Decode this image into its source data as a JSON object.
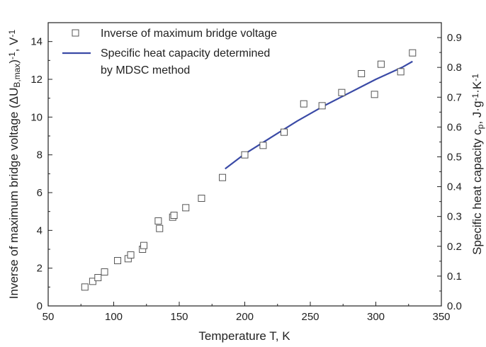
{
  "chart_data": {
    "type": "scatter",
    "x_axis": {
      "label": "Temperature T, K",
      "range": [
        50,
        350
      ],
      "ticks": [
        50,
        100,
        150,
        200,
        250,
        300,
        350
      ]
    },
    "y_axis_left": {
      "label_parts": [
        "Inverse of maximum bridge voltage (ΔU",
        "B,max",
        ")",
        "-1",
        ", V",
        "-1"
      ],
      "range": [
        0,
        15
      ],
      "ticks": [
        0,
        2,
        4,
        6,
        8,
        10,
        12,
        14
      ]
    },
    "y_axis_right": {
      "label_parts": [
        "Specific heat capacity c",
        "p",
        ", J·g",
        "-1",
        "·K",
        "-1"
      ],
      "range": [
        0,
        0.95
      ],
      "ticks": [
        "0.0",
        "0.1",
        "0.2",
        "0.3",
        "0.4",
        "0.5",
        "0.6",
        "0.7",
        "0.8",
        "0.9"
      ]
    },
    "grid": false,
    "legend_position": "top-left",
    "colors": {
      "line": "#3a4aa6",
      "markers": "#555555",
      "axes": "#222222"
    },
    "series": [
      {
        "name": "Inverse of maximum bridge voltage",
        "type": "scatter",
        "axis": "left",
        "marker": "open-square",
        "x": [
          78,
          84,
          88,
          93,
          103,
          111,
          113,
          122,
          123,
          134,
          135,
          145,
          146,
          155,
          167,
          183,
          200,
          214,
          230,
          245,
          259,
          274,
          289,
          299,
          304,
          319,
          328
        ],
        "y": [
          1.0,
          1.3,
          1.5,
          1.8,
          2.4,
          2.5,
          2.7,
          3.0,
          3.2,
          4.5,
          4.1,
          4.7,
          4.8,
          5.2,
          5.7,
          6.8,
          8.0,
          8.5,
          9.2,
          10.7,
          10.6,
          11.3,
          12.3,
          11.2,
          12.8,
          12.4,
          13.4
        ]
      },
      {
        "name_lines": [
          "Specific heat capacity determined",
          "by MDSC method"
        ],
        "type": "line",
        "axis": "right",
        "x": [
          185,
          200,
          220,
          240,
          260,
          280,
          300,
          320,
          328
        ],
        "y": [
          0.46,
          0.51,
          0.565,
          0.62,
          0.67,
          0.715,
          0.76,
          0.8,
          0.82
        ]
      }
    ]
  }
}
